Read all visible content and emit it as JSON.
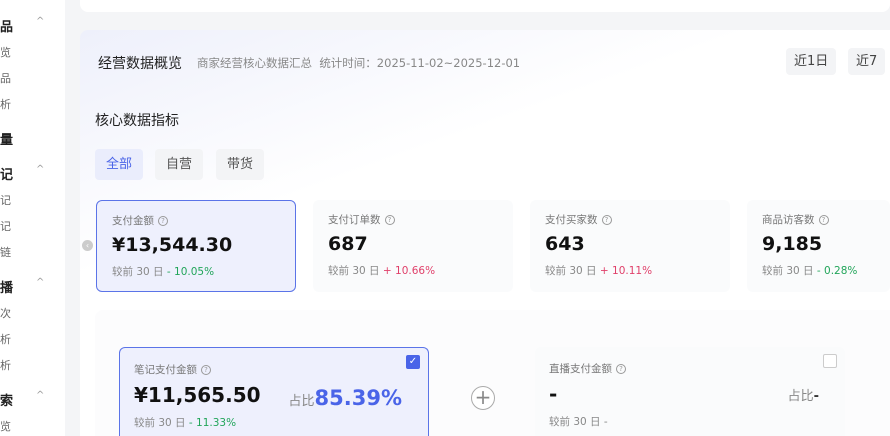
{
  "sidebar": {
    "groups": [
      {
        "title": "品",
        "items": [
          "览",
          "品",
          "析"
        ]
      },
      {
        "title": "量",
        "items": []
      },
      {
        "title": "记",
        "items": [
          "记",
          "记",
          "链"
        ]
      },
      {
        "title": "播",
        "items": [
          "次",
          "析",
          "析"
        ]
      },
      {
        "title": "索",
        "items": [
          "览"
        ]
      }
    ]
  },
  "header": {
    "title": "经营数据概览",
    "subtitle": "商家经营核心数据汇总",
    "stat_time": "统计时间：2025-11-02~2025-12-01",
    "range_buttons": [
      "近1日",
      "近7"
    ]
  },
  "section": {
    "title": "核心数据指标",
    "tabs": [
      "全部",
      "自营",
      "带货"
    ]
  },
  "metrics": [
    {
      "label": "支付金额",
      "value": "¥13,544.30",
      "compare": "较前 30 日",
      "change": "- 10.05%",
      "trend": "down"
    },
    {
      "label": "支付订单数",
      "value": "687",
      "compare": "较前 30 日",
      "change": "+ 10.66%",
      "trend": "up"
    },
    {
      "label": "支付买家数",
      "value": "643",
      "compare": "较前 30 日",
      "change": "+ 10.11%",
      "trend": "up"
    },
    {
      "label": "商品访客数",
      "value": "9,185",
      "compare": "较前 30 日",
      "change": "- 0.28%",
      "trend": "down"
    }
  ],
  "breakdown": [
    {
      "label": "笔记支付金额",
      "value": "¥11,565.50",
      "ratio_label": "占比",
      "ratio": "85.39%",
      "compare": "较前 30 日",
      "change": "- 11.33%",
      "checked": true
    },
    {
      "label": "直播支付金额",
      "value": "-",
      "ratio_label": "占比",
      "ratio": "-",
      "compare": "较前 30 日",
      "change": "-",
      "checked": false
    }
  ],
  "colors": {
    "accent": "#4a64e8",
    "up": "#e0406a",
    "down": "#22a55a"
  }
}
